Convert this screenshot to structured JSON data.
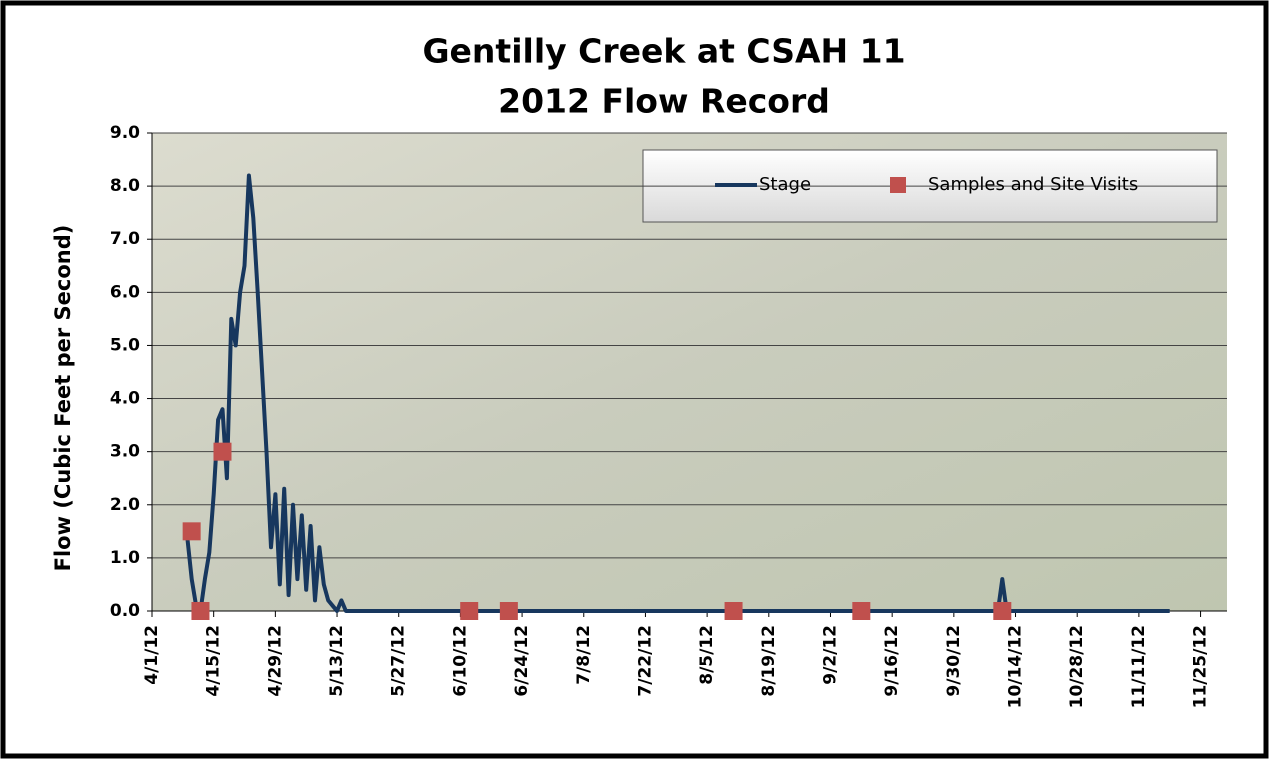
{
  "chart_data": {
    "type": "line",
    "title": "Gentilly Creek at CSAH 11",
    "subtitle": "2012 Flow Record",
    "y_label": "Flow (Cubic Feet per Second)",
    "xlim": [
      "4/1/12",
      "12/1/12"
    ],
    "xticks": [
      "4/1/12",
      "4/15/12",
      "4/29/12",
      "5/13/12",
      "5/27/12",
      "6/10/12",
      "6/24/12",
      "7/8/12",
      "7/22/12",
      "8/5/12",
      "8/19/12",
      "9/2/12",
      "9/16/12",
      "9/30/12",
      "10/14/12",
      "10/28/12",
      "11/11/12",
      "11/25/12"
    ],
    "ylim": [
      0,
      9
    ],
    "yticks": [
      {
        "value": 0,
        "label": "0.0"
      },
      {
        "value": 1,
        "label": "1.0"
      },
      {
        "value": 2,
        "label": "2.0"
      },
      {
        "value": 3,
        "label": "3.0"
      },
      {
        "value": 4,
        "label": "4.0"
      },
      {
        "value": 5,
        "label": "5.0"
      },
      {
        "value": 6,
        "label": "6.0"
      },
      {
        "value": 7,
        "label": "7.0"
      },
      {
        "value": 8,
        "label": "8.0"
      },
      {
        "value": 9,
        "label": "9.0"
      }
    ],
    "grid": true,
    "legend": "top-right",
    "series": [
      {
        "name": "Stage",
        "color": "#17375e",
        "style": "line",
        "x": [
          "4/9/12",
          "4/10/12",
          "4/11/12",
          "4/12/12",
          "4/13/12",
          "4/14/12",
          "4/15/12",
          "4/16/12",
          "4/17/12",
          "4/18/12",
          "4/19/12",
          "4/20/12",
          "4/21/12",
          "4/22/12",
          "4/23/12",
          "4/24/12",
          "4/25/12",
          "4/26/12",
          "4/27/12",
          "4/28/12",
          "4/29/12",
          "4/30/12",
          "5/1/12",
          "5/2/12",
          "5/3/12",
          "5/4/12",
          "5/5/12",
          "5/6/12",
          "5/7/12",
          "5/8/12",
          "5/9/12",
          "5/10/12",
          "5/11/12",
          "5/12/12",
          "5/13/12",
          "5/14/12",
          "5/15/12",
          "10/10/12",
          "10/11/12",
          "10/12/12",
          "11/18/12"
        ],
        "values": [
          1.4,
          0.6,
          0.1,
          0.0,
          0.6,
          1.1,
          2.2,
          3.6,
          3.8,
          2.5,
          5.5,
          5.0,
          6.0,
          6.5,
          8.2,
          7.4,
          6.0,
          4.5,
          3.0,
          1.2,
          2.2,
          0.5,
          2.3,
          0.3,
          2.0,
          0.6,
          1.8,
          0.4,
          1.6,
          0.2,
          1.2,
          0.5,
          0.2,
          0.1,
          0.0,
          0.2,
          0.0,
          0.0,
          0.6,
          0.0,
          0.0
        ]
      },
      {
        "name": "Samples and Site Visits",
        "color": "#c0504d",
        "style": "marker",
        "x": [
          "4/10/12",
          "4/12/12",
          "4/17/12",
          "6/12/12",
          "6/21/12",
          "8/11/12",
          "9/9/12",
          "10/11/12"
        ],
        "values": [
          1.5,
          0.0,
          3.0,
          0.0,
          0.0,
          0.0,
          0.0,
          0.0
        ]
      }
    ]
  }
}
